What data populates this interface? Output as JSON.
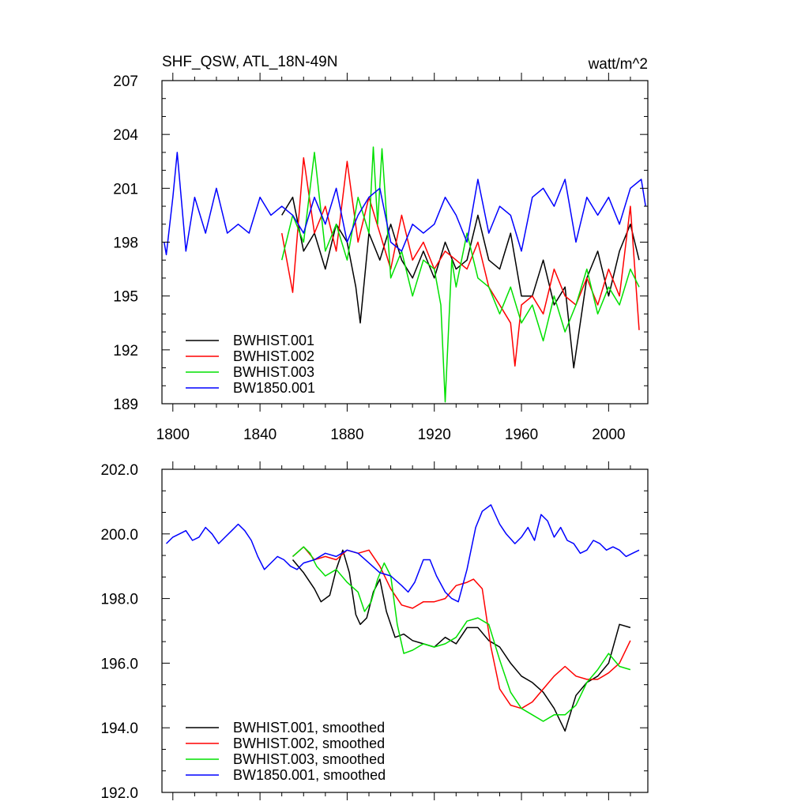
{
  "chart_data": [
    {
      "type": "line",
      "title": "SHF_QSW, ATL_18N-49N",
      "units_label": "watt/m^2",
      "xlim": [
        1795,
        2018
      ],
      "ylim": [
        189,
        207
      ],
      "xticks": [
        1800,
        1840,
        1880,
        1920,
        1960,
        2000
      ],
      "xtick_labels": [
        "1800",
        "1840",
        "1880",
        "1920",
        "1960",
        "2000"
      ],
      "yticks": [
        189,
        192,
        195,
        198,
        201,
        204,
        207
      ],
      "ytick_labels": [
        "189",
        "192",
        "195",
        "198",
        "201",
        "204",
        "207"
      ],
      "legend_position": "lower-left",
      "series": [
        {
          "name": "BWHIST.001",
          "color": "#000000",
          "x": [
            1850,
            1855,
            1860,
            1865,
            1870,
            1875,
            1880,
            1884,
            1886,
            1890,
            1895,
            1900,
            1905,
            1910,
            1915,
            1920,
            1925,
            1930,
            1935,
            1940,
            1945,
            1950,
            1955,
            1960,
            1965,
            1970,
            1975,
            1980,
            1984,
            1990,
            1995,
            2000,
            2005,
            2010,
            2014
          ],
          "values": [
            199.5,
            200.5,
            197.5,
            198.5,
            196.5,
            199.0,
            198.0,
            195.5,
            193.5,
            198.5,
            197.0,
            199.0,
            197.0,
            196.0,
            197.5,
            196.0,
            198.0,
            196.5,
            197.0,
            199.5,
            197.0,
            196.5,
            198.5,
            195.0,
            195.0,
            197.0,
            194.5,
            195.5,
            191.0,
            196.0,
            197.5,
            195.0,
            197.5,
            199.0,
            197.0
          ]
        },
        {
          "name": "BWHIST.002",
          "color": "#ff0000",
          "x": [
            1850,
            1855,
            1860,
            1865,
            1870,
            1875,
            1880,
            1885,
            1890,
            1895,
            1900,
            1905,
            1910,
            1915,
            1920,
            1925,
            1930,
            1935,
            1940,
            1945,
            1950,
            1955,
            1957,
            1960,
            1965,
            1970,
            1975,
            1980,
            1985,
            1990,
            1995,
            2000,
            2005,
            2010,
            2014
          ],
          "values": [
            198.5,
            195.2,
            202.7,
            198.5,
            200.0,
            197.5,
            202.5,
            198.0,
            200.5,
            198.5,
            196.5,
            199.5,
            197.0,
            198.0,
            196.5,
            197.5,
            197.0,
            196.5,
            198.0,
            195.5,
            194.5,
            193.5,
            191.1,
            194.5,
            195.0,
            194.0,
            196.5,
            195.0,
            194.5,
            196.0,
            194.5,
            196.5,
            195.0,
            200.0,
            193.1
          ]
        },
        {
          "name": "BWHIST.003",
          "color": "#00e000",
          "x": [
            1850,
            1855,
            1860,
            1865,
            1870,
            1875,
            1880,
            1885,
            1890,
            1892,
            1894,
            1896,
            1900,
            1905,
            1910,
            1915,
            1920,
            1923,
            1925,
            1928,
            1930,
            1935,
            1940,
            1945,
            1950,
            1955,
            1960,
            1965,
            1970,
            1975,
            1980,
            1985,
            1990,
            1995,
            2000,
            2005,
            2010,
            2014
          ],
          "values": [
            197.0,
            199.5,
            198.0,
            203.0,
            197.5,
            199.0,
            197.0,
            200.5,
            198.5,
            203.3,
            199.0,
            203.2,
            196.0,
            197.5,
            195.0,
            197.0,
            196.5,
            194.5,
            189.1,
            197.0,
            195.5,
            198.5,
            196.0,
            195.5,
            194.0,
            195.5,
            193.5,
            194.5,
            192.5,
            195.0,
            193.0,
            194.5,
            196.5,
            194.0,
            195.5,
            194.5,
            196.5,
            195.5
          ]
        },
        {
          "name": "BW1850.001",
          "color": "#0000ff",
          "x": [
            1796,
            1797,
            1800,
            1802,
            1806,
            1810,
            1815,
            1820,
            1825,
            1830,
            1835,
            1840,
            1845,
            1850,
            1855,
            1860,
            1865,
            1870,
            1875,
            1880,
            1885,
            1890,
            1895,
            1900,
            1905,
            1910,
            1915,
            1920,
            1925,
            1930,
            1935,
            1940,
            1945,
            1950,
            1955,
            1960,
            1965,
            1970,
            1975,
            1980,
            1985,
            1990,
            1995,
            2000,
            2005,
            2010,
            2015,
            2017
          ],
          "values": [
            198.0,
            197.3,
            200.5,
            203.0,
            197.5,
            200.5,
            198.5,
            201.0,
            198.5,
            199.0,
            198.5,
            200.5,
            199.5,
            200.0,
            199.5,
            198.5,
            200.5,
            199.0,
            201.0,
            198.0,
            199.5,
            200.5,
            201.0,
            198.0,
            197.5,
            199.0,
            198.5,
            199.0,
            200.5,
            199.5,
            198.0,
            201.5,
            198.5,
            200.0,
            199.5,
            197.5,
            200.5,
            201.0,
            200.0,
            201.5,
            198.0,
            200.5,
            199.5,
            200.5,
            199.0,
            201.0,
            201.5,
            200.0
          ]
        }
      ]
    },
    {
      "type": "line",
      "xlim": [
        1795,
        2018
      ],
      "ylim": [
        192.0,
        202.0
      ],
      "yticks": [
        192.0,
        194.0,
        196.0,
        198.0,
        200.0,
        202.0
      ],
      "ytick_labels": [
        "192.0",
        "194.0",
        "196.0",
        "198.0",
        "200.0",
        "202.0"
      ],
      "xticks": [
        1800,
        1840,
        1880,
        1920,
        1960,
        2000
      ],
      "legend_position": "lower-left",
      "series": [
        {
          "name": "BWHIST.001, smoothed",
          "color": "#000000",
          "x": [
            1855,
            1860,
            1865,
            1868,
            1872,
            1875,
            1878,
            1881,
            1884,
            1886,
            1889,
            1892,
            1895,
            1898,
            1902,
            1906,
            1910,
            1915,
            1920,
            1925,
            1930,
            1935,
            1940,
            1945,
            1950,
            1955,
            1960,
            1965,
            1970,
            1975,
            1980,
            1985,
            1990,
            1995,
            2000,
            2005,
            2010
          ],
          "values": [
            199.2,
            198.8,
            198.3,
            197.9,
            198.1,
            198.9,
            199.5,
            198.8,
            197.5,
            197.2,
            197.4,
            198.2,
            198.6,
            197.6,
            196.8,
            196.9,
            196.7,
            196.6,
            196.5,
            196.8,
            196.6,
            197.1,
            197.1,
            196.7,
            196.5,
            196.0,
            195.6,
            195.4,
            195.1,
            194.6,
            193.9,
            195.0,
            195.4,
            195.6,
            196.0,
            197.2,
            197.1
          ]
        },
        {
          "name": "BWHIST.002, smoothed",
          "color": "#ff0000",
          "x": [
            1855,
            1860,
            1865,
            1870,
            1875,
            1880,
            1885,
            1890,
            1895,
            1900,
            1905,
            1910,
            1915,
            1920,
            1925,
            1930,
            1935,
            1938,
            1942,
            1946,
            1950,
            1955,
            1960,
            1965,
            1970,
            1975,
            1980,
            1985,
            1990,
            1995,
            2000,
            2005,
            2010
          ],
          "values": [
            199.3,
            199.6,
            199.2,
            199.3,
            199.2,
            199.5,
            199.4,
            199.5,
            199.0,
            198.3,
            197.8,
            197.7,
            197.9,
            197.9,
            198.0,
            198.4,
            198.5,
            198.6,
            198.3,
            196.5,
            195.2,
            194.7,
            194.6,
            194.8,
            195.2,
            195.6,
            195.9,
            195.6,
            195.5,
            195.5,
            195.7,
            196.0,
            196.7
          ]
        },
        {
          "name": "BWHIST.003, smoothed",
          "color": "#00e000",
          "x": [
            1855,
            1860,
            1863,
            1866,
            1870,
            1875,
            1880,
            1885,
            1888,
            1891,
            1894,
            1897,
            1900,
            1903,
            1906,
            1910,
            1915,
            1920,
            1925,
            1930,
            1935,
            1940,
            1945,
            1950,
            1955,
            1960,
            1965,
            1970,
            1975,
            1980,
            1985,
            1990,
            1995,
            2000,
            2005,
            2010
          ],
          "values": [
            199.3,
            199.6,
            199.4,
            199.0,
            198.7,
            198.9,
            198.5,
            198.2,
            197.6,
            197.9,
            198.6,
            199.1,
            198.7,
            197.2,
            196.3,
            196.4,
            196.6,
            196.5,
            196.6,
            196.8,
            197.3,
            197.4,
            197.2,
            196.1,
            195.1,
            194.6,
            194.4,
            194.2,
            194.4,
            194.4,
            194.7,
            195.4,
            195.8,
            196.3,
            195.9,
            195.8
          ]
        },
        {
          "name": "BW1850.001, smoothed",
          "color": "#0000ff",
          "x": [
            1797,
            1800,
            1803,
            1806,
            1809,
            1812,
            1815,
            1818,
            1821,
            1824,
            1827,
            1830,
            1833,
            1836,
            1839,
            1842,
            1845,
            1848,
            1851,
            1854,
            1857,
            1860,
            1865,
            1870,
            1875,
            1880,
            1885,
            1890,
            1895,
            1900,
            1905,
            1908,
            1911,
            1915,
            1918,
            1921,
            1925,
            1928,
            1931,
            1935,
            1939,
            1942,
            1946,
            1950,
            1953,
            1957,
            1960,
            1963,
            1966,
            1969,
            1972,
            1975,
            1978,
            1981,
            1984,
            1987,
            1990,
            1993,
            1996,
            1999,
            2002,
            2005,
            2008,
            2011,
            2014
          ],
          "values": [
            199.7,
            199.9,
            200.0,
            200.1,
            199.8,
            199.9,
            200.2,
            200.0,
            199.7,
            199.9,
            200.1,
            200.3,
            200.1,
            199.8,
            199.3,
            198.9,
            199.1,
            199.3,
            199.2,
            199.0,
            198.9,
            199.1,
            199.2,
            199.4,
            199.3,
            199.5,
            199.4,
            199.1,
            198.8,
            198.7,
            198.4,
            198.2,
            198.5,
            199.2,
            199.2,
            198.7,
            198.2,
            198.0,
            197.9,
            198.9,
            200.2,
            200.7,
            200.9,
            200.3,
            200.0,
            199.7,
            199.9,
            200.2,
            199.8,
            200.6,
            200.4,
            199.9,
            200.2,
            199.8,
            199.7,
            199.4,
            199.5,
            199.8,
            199.7,
            199.5,
            199.6,
            199.5,
            199.3,
            199.4,
            199.5
          ]
        }
      ]
    }
  ]
}
